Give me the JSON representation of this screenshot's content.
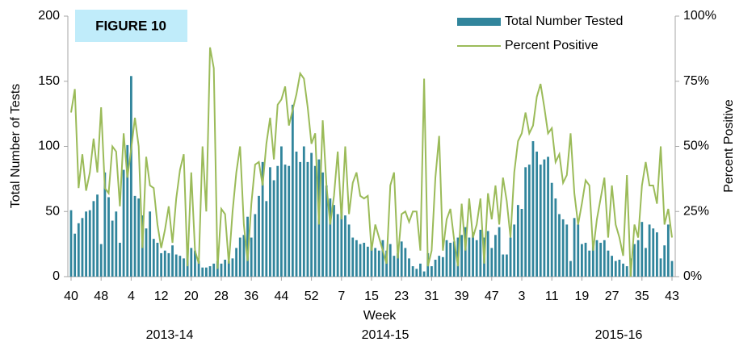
{
  "chart_data": {
    "type": "bar",
    "title": "FIGURE 10",
    "x_label": "Week",
    "y_label": "Total Number of Tests",
    "y2_label": "Percent Positive",
    "annotations": [
      "2013-14",
      "2014-15",
      "2015-16"
    ],
    "categories": [
      "40",
      null,
      null,
      null,
      null,
      null,
      null,
      null,
      "48",
      null,
      null,
      null,
      null,
      null,
      null,
      null,
      "4",
      null,
      null,
      null,
      null,
      null,
      null,
      null,
      "12",
      null,
      null,
      null,
      null,
      null,
      null,
      null,
      "20",
      null,
      null,
      null,
      null,
      null,
      null,
      null,
      "28",
      null,
      null,
      null,
      null,
      null,
      null,
      null,
      "36",
      null,
      null,
      null,
      null,
      null,
      null,
      null,
      "44",
      null,
      null,
      null,
      null,
      null,
      null,
      null,
      "52",
      null,
      null,
      null,
      null,
      null,
      null,
      null,
      "7",
      null,
      null,
      null,
      null,
      null,
      null,
      null,
      "15",
      null,
      null,
      null,
      null,
      null,
      null,
      null,
      "23",
      null,
      null,
      null,
      null,
      null,
      null,
      null,
      "31",
      null,
      null,
      null,
      null,
      null,
      null,
      null,
      "39",
      null,
      null,
      null,
      null,
      null,
      null,
      null,
      "47",
      null,
      null,
      null,
      null,
      null,
      null,
      null,
      "3",
      null,
      null,
      null,
      null,
      null,
      null,
      null,
      "11",
      null,
      null,
      null,
      null,
      null,
      null,
      null,
      "19",
      null,
      null,
      null,
      null,
      null,
      null,
      null,
      "27",
      null,
      null,
      null,
      null,
      null,
      null,
      null,
      "35",
      null,
      null,
      null,
      null,
      null,
      null,
      null,
      "43"
    ],
    "series": [
      {
        "name": "Total Number Tested",
        "type": "bar",
        "color": "#31859c",
        "values": [
          51,
          33,
          41,
          45,
          50,
          51,
          58,
          63,
          25,
          80,
          61,
          43,
          50,
          26,
          82,
          101,
          154,
          62,
          60,
          47,
          37,
          50,
          29,
          26,
          18,
          20,
          18,
          24,
          17,
          16,
          14,
          24,
          22,
          20,
          12,
          7,
          7,
          8,
          10,
          12,
          10,
          13,
          12,
          14,
          22,
          30,
          32,
          46,
          30,
          48,
          62,
          88,
          58,
          84,
          74,
          85,
          100,
          86,
          85,
          132,
          96,
          88,
          100,
          88,
          95,
          85,
          90,
          80,
          70,
          60,
          55,
          48,
          50,
          47,
          40,
          30,
          28,
          25,
          26,
          23,
          25,
          22,
          20,
          28,
          20,
          25,
          16,
          18,
          27,
          22,
          14,
          8,
          6,
          10,
          4,
          18,
          8,
          13,
          16,
          15,
          28,
          26,
          27,
          30,
          32,
          38,
          30,
          34,
          28,
          36,
          30,
          35,
          22,
          32,
          38,
          17,
          17,
          30,
          40,
          55,
          52,
          84,
          86,
          104,
          96,
          86,
          90,
          92,
          72,
          60,
          48,
          44,
          40,
          12,
          45,
          40,
          25,
          26,
          20,
          26,
          28,
          26,
          28,
          20,
          16,
          12,
          13,
          10,
          8,
          14,
          25,
          28,
          42,
          22,
          40,
          37,
          34,
          14,
          24,
          40,
          12
        ]
      },
      {
        "name": "Percent Positive",
        "type": "line",
        "axis": "y2",
        "color": "#9bbb59",
        "values": [
          63,
          72,
          34,
          47,
          33,
          40,
          53,
          40,
          65,
          34,
          32,
          50,
          48,
          27,
          55,
          38,
          49,
          61,
          50,
          11,
          46,
          35,
          34,
          20,
          11,
          18,
          27,
          13,
          30,
          41,
          47,
          4,
          40,
          10,
          5,
          50,
          25,
          88,
          80,
          3,
          26,
          24,
          5,
          25,
          40,
          50,
          20,
          6,
          28,
          43,
          44,
          35,
          51,
          61,
          45,
          66,
          68,
          73,
          58,
          64,
          70,
          78,
          76,
          65,
          51,
          55,
          20,
          60,
          35,
          20,
          31,
          48,
          22,
          50,
          24,
          36,
          40,
          31,
          30,
          31,
          10,
          20,
          15,
          10,
          5,
          35,
          40,
          7,
          24,
          25,
          21,
          25,
          25,
          10,
          76,
          4,
          10,
          38,
          54,
          10,
          22,
          26,
          14,
          4,
          28,
          10,
          30,
          15,
          20,
          30,
          5,
          32,
          22,
          35,
          20,
          38,
          29,
          15,
          40,
          52,
          55,
          63,
          55,
          58,
          69,
          74,
          65,
          55,
          57,
          44,
          47,
          36,
          39,
          55,
          32,
          20,
          28,
          37,
          35,
          10,
          22,
          30,
          38,
          15,
          35,
          20,
          15,
          8,
          39,
          0,
          20,
          15,
          35,
          44,
          35,
          35,
          28,
          50,
          20,
          26,
          15
        ]
      }
    ],
    "ylim": [
      0,
      200
    ],
    "yticks": [
      0,
      50,
      100,
      150,
      200
    ],
    "y2lim": [
      0,
      100
    ],
    "y2ticks": [
      {
        "value": 0,
        "label": "0%"
      },
      {
        "value": 25,
        "label": "25%"
      },
      {
        "value": 50,
        "label": "50%"
      },
      {
        "value": 75,
        "label": "75%"
      },
      {
        "value": 100,
        "label": "100%"
      }
    ],
    "grid": false
  }
}
